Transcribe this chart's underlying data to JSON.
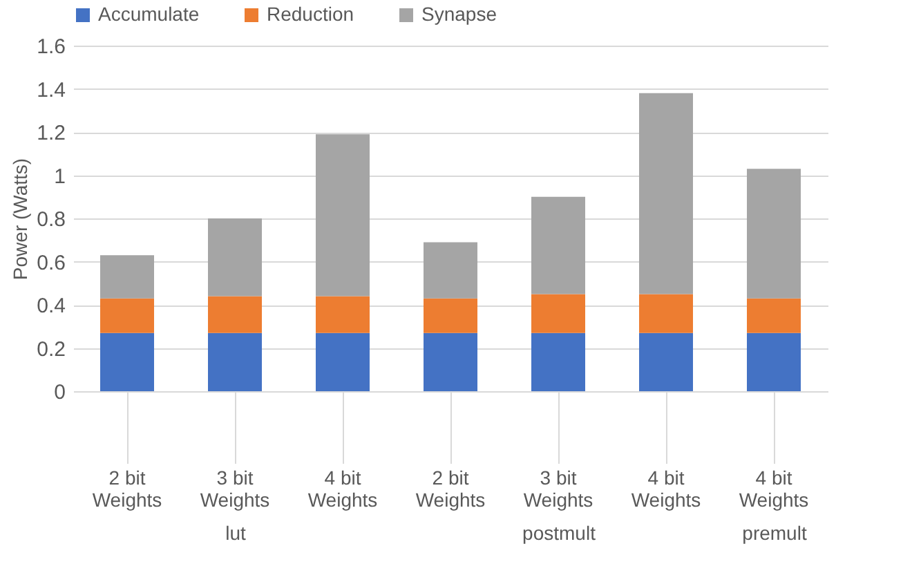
{
  "chart_data": [
    {
      "type": "bar",
      "stacked": true,
      "xlabel": "lut",
      "ylabel": "Power (Watts)",
      "categories": [
        "2 bit Weights",
        "3 bit Weights",
        "4 bit Weights"
      ],
      "series": [
        {
          "name": "Accumulate",
          "color": "#4472c4",
          "values": [
            0.27,
            0.27,
            0.27
          ]
        },
        {
          "name": "Reduction",
          "color": "#ed7d31",
          "values": [
            0.16,
            0.17,
            0.17
          ]
        },
        {
          "name": "Synapse",
          "color": "#a5a5a5",
          "values": [
            0.2,
            0.36,
            0.75
          ]
        }
      ],
      "ylim": [
        0,
        1.6
      ],
      "yticks": [
        0,
        0.2,
        0.4,
        0.6,
        0.8,
        1,
        1.2,
        1.4,
        1.6
      ],
      "grid": "y",
      "legend": "top"
    },
    {
      "type": "bar",
      "stacked": true,
      "xlabel": "postmult",
      "categories": [
        "2 bit Weights",
        "3 bit Weights",
        "4 bit Weights"
      ],
      "series": [
        {
          "color": "#4472c4",
          "values": [
            0.27,
            0.27,
            0.27
          ]
        },
        {
          "color": "#ed7d31",
          "values": [
            0.16,
            0.18,
            0.18
          ]
        },
        {
          "color": "#a5a5a5",
          "values": [
            0.26,
            0.45,
            0.93
          ]
        }
      ],
      "ylim": [
        0,
        1.6
      ],
      "yticks": [
        0,
        0.2,
        0.4,
        0.6,
        0.8,
        1,
        1.2,
        1.4,
        1.6
      ],
      "grid": "y",
      "tick_labels": "x"
    },
    {
      "type": "bar",
      "stacked": true,
      "xlabel": "premult",
      "categories": [
        "4 bit Weights"
      ],
      "series": [
        {
          "color": "#4472c4",
          "values": [
            0.27
          ]
        },
        {
          "color": "#ed7d31",
          "values": [
            0.16
          ]
        },
        {
          "color": "#a5a5a5",
          "values": [
            0.6
          ]
        }
      ],
      "ylim": [
        0,
        1.6
      ],
      "yticks": [
        0,
        0.2,
        0.4,
        0.6,
        0.8,
        1,
        1.2,
        1.4,
        1.6
      ],
      "grid": "y",
      "tick_labels": "x"
    }
  ]
}
